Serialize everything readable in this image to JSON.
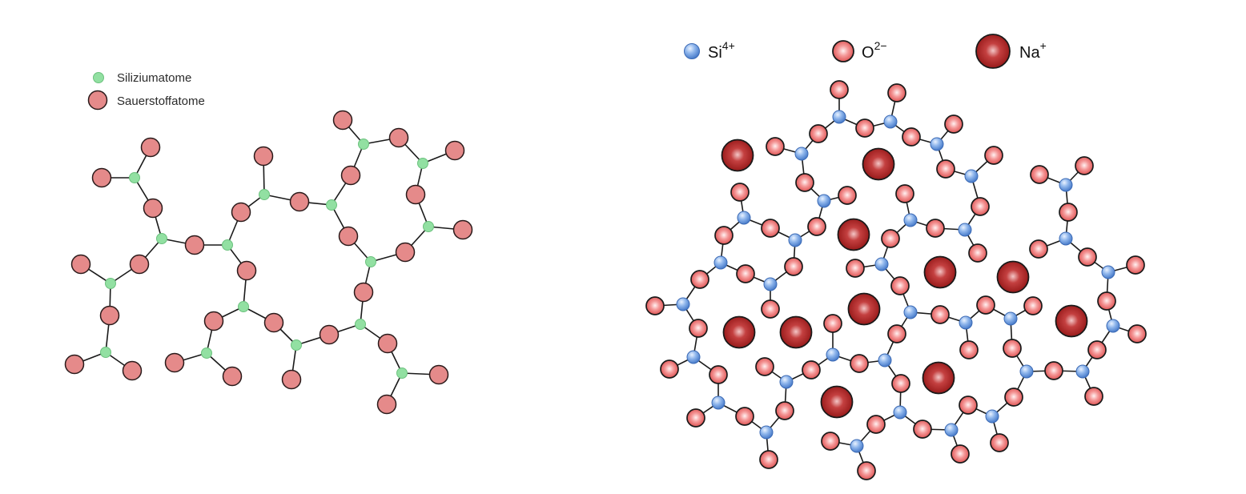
{
  "left_diagram": {
    "legend": [
      {
        "label": "Siliziumatome",
        "symbol": "silicon-atom"
      },
      {
        "label": "Sauerstoffatome",
        "symbol": "oxygen-atom"
      }
    ],
    "colors": {
      "silicon": "#92e0a2",
      "oxygen": "#e58a8a",
      "outline": "#2a1a1a",
      "bond": "#1a1a1a"
    }
  },
  "right_diagram": {
    "legend": [
      {
        "base": "Si",
        "charge": "4+",
        "symbol": "silicon-ion"
      },
      {
        "base": "O",
        "charge": "2−",
        "symbol": "oxygen-ion"
      },
      {
        "base": "Na",
        "charge": "+",
        "symbol": "sodium-ion"
      }
    ],
    "colors": {
      "silicon": "#5b8fd8",
      "oxygen": "#e86060",
      "sodium": "#b01818",
      "bond": "#1a1a1a"
    }
  }
}
